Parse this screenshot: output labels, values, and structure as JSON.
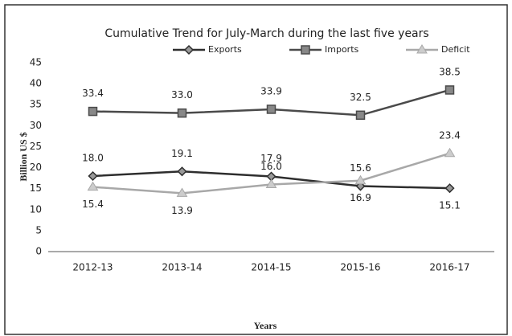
{
  "chart_data": {
    "type": "line",
    "title": "Cumulative Trend for July-March  during the last five years",
    "x_label": "Years",
    "y_label": "Billion US $",
    "categories": [
      "2012-13",
      "2013-14",
      "2014-15",
      "2015-16",
      "2016-17"
    ],
    "series": [
      {
        "name": "Exports",
        "color": "#2e2e2e",
        "marker": "diamond",
        "values": [
          18.0,
          19.1,
          17.9,
          15.6,
          15.1
        ],
        "value_labels": [
          "18.0",
          "19.1",
          "17.9",
          "15.6",
          "15.1"
        ]
      },
      {
        "name": "Imports",
        "color": "#4a4a4a",
        "marker": "square",
        "values": [
          33.4,
          33.0,
          33.9,
          32.5,
          38.5
        ],
        "value_labels": [
          "33.4",
          "33.0",
          "33.9",
          "32.5",
          "38.5"
        ]
      },
      {
        "name": "Deficit",
        "color": "#a8a8a8",
        "marker": "triangle",
        "values": [
          15.4,
          13.9,
          16.0,
          16.9,
          23.4
        ],
        "value_labels": [
          "15.4",
          "13.9",
          "16.0",
          "16.9",
          "23.4"
        ]
      }
    ],
    "ylim": [
      0,
      45
    ],
    "yticks": [
      0,
      5,
      10,
      15,
      20,
      25,
      30,
      35,
      40,
      45
    ],
    "grid": false,
    "legend": "top"
  }
}
